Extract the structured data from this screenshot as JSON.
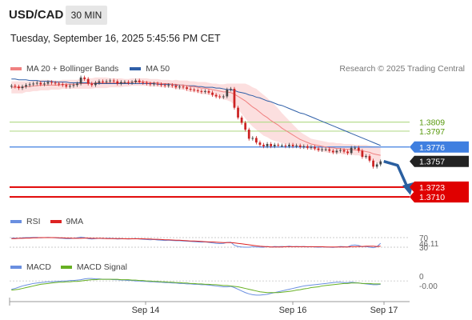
{
  "header": {
    "symbol": "USD/CAD",
    "interval": "30 MIN"
  },
  "timestamp": "Tuesday, September 16, 2025 5:45:56 PM CET",
  "legend": {
    "ma20_label": "MA 20 + Bollinger Bands",
    "ma50_label": "MA 50",
    "research": "Research © 2025 Trading Central"
  },
  "rsi_legend": {
    "rsi": "RSI",
    "ma": "9MA"
  },
  "macd_legend": {
    "macd": "MACD",
    "signal": "MACD Signal"
  },
  "colors": {
    "ma20": "#f08080",
    "ma50": "#2f5fa8",
    "bollinger_fill": "#fbd9d9",
    "resistance": "#b7dc8f",
    "pivot": "#3f7fe0",
    "support": "#e00000",
    "candle_up": "#444444",
    "candle_down": "#cc2222",
    "rsi": "#6a8fe0",
    "rsi_ma": "#dd2222",
    "macd": "#6a8fe0",
    "macd_signal": "#66b022",
    "arrow": "#2a5fa0"
  },
  "chart_data": {
    "type": "candlestick",
    "title": "USD/CAD",
    "interval": "30 MIN",
    "x_tick_labels": [
      "Sep 14",
      "Sep 16",
      "Sep 17"
    ],
    "y_range": [
      1.369,
      1.387
    ],
    "levels": {
      "resistance": [
        1.3809,
        1.3797
      ],
      "pivot": 1.3776,
      "last_price": 1.3757,
      "support": [
        1.3723,
        1.371
      ]
    },
    "level_labels": [
      "1.3809",
      "1.3797",
      "1.3776",
      "1.3757",
      "1.3723",
      "1.3710"
    ],
    "close": [
      1.3857,
      1.3856,
      1.3854,
      1.3856,
      1.3858,
      1.3859,
      1.386,
      1.3861,
      1.3859,
      1.386,
      1.3862,
      1.3861,
      1.386,
      1.3859,
      1.3858,
      1.3856,
      1.3857,
      1.3858,
      1.386,
      1.3868,
      1.3866,
      1.386,
      1.3858,
      1.3861,
      1.3863,
      1.3862,
      1.3863,
      1.3864,
      1.3863,
      1.386,
      1.3862,
      1.3862,
      1.3861,
      1.3862,
      1.3864,
      1.3862,
      1.3861,
      1.386,
      1.3859,
      1.386,
      1.3859,
      1.3858,
      1.3857,
      1.3858,
      1.3857,
      1.3855,
      1.3856,
      1.3855,
      1.3853,
      1.3852,
      1.3851,
      1.385,
      1.3849,
      1.385,
      1.3848,
      1.3845,
      1.3843,
      1.3842,
      1.3843,
      1.3852,
      1.3853,
      1.3828,
      1.3815,
      1.3808,
      1.3799,
      1.3787,
      1.3788,
      1.3782,
      1.3779,
      1.3777,
      1.378,
      1.3777,
      1.3779,
      1.3778,
      1.3778,
      1.3777,
      1.3779,
      1.3777,
      1.3778,
      1.3776,
      1.3777,
      1.3775,
      1.3776,
      1.3774,
      1.3772,
      1.3773,
      1.3773,
      1.3771,
      1.3769,
      1.3771,
      1.3772,
      1.377,
      1.3768,
      1.3775,
      1.3775,
      1.3771,
      1.3763,
      1.3764,
      1.3758,
      1.375,
      1.3753,
      1.3757
    ],
    "open": [
      1.3856,
      1.3857,
      1.3856,
      1.3854,
      1.3856,
      1.3858,
      1.3859,
      1.386,
      1.3861,
      1.3859,
      1.386,
      1.3862,
      1.3861,
      1.386,
      1.3859,
      1.3858,
      1.3856,
      1.3857,
      1.3858,
      1.386,
      1.3868,
      1.3866,
      1.386,
      1.3858,
      1.3861,
      1.3863,
      1.3862,
      1.3863,
      1.3864,
      1.3863,
      1.386,
      1.3862,
      1.3862,
      1.3861,
      1.3862,
      1.3864,
      1.3862,
      1.3861,
      1.386,
      1.3859,
      1.386,
      1.3859,
      1.3858,
      1.3857,
      1.3858,
      1.3857,
      1.3855,
      1.3856,
      1.3855,
      1.3853,
      1.3852,
      1.3851,
      1.385,
      1.3849,
      1.385,
      1.3848,
      1.3845,
      1.3843,
      1.3842,
      1.3843,
      1.3852,
      1.3853,
      1.3828,
      1.3815,
      1.3808,
      1.3799,
      1.3787,
      1.3788,
      1.3782,
      1.3779,
      1.3777,
      1.378,
      1.3777,
      1.3779,
      1.3778,
      1.3778,
      1.3777,
      1.3779,
      1.3777,
      1.3778,
      1.3776,
      1.3777,
      1.3775,
      1.3776,
      1.3774,
      1.3772,
      1.3773,
      1.3773,
      1.3771,
      1.3769,
      1.3771,
      1.3772,
      1.377,
      1.3768,
      1.3775,
      1.3775,
      1.3771,
      1.3763,
      1.3764,
      1.3758,
      1.375,
      1.3753
    ],
    "ma20": [
      1.3855,
      1.3855,
      1.3855,
      1.3855,
      1.3856,
      1.3856,
      1.3857,
      1.3857,
      1.3858,
      1.3858,
      1.3858,
      1.3858,
      1.3858,
      1.3858,
      1.3859,
      1.3859,
      1.3859,
      1.3859,
      1.3859,
      1.386,
      1.386,
      1.386,
      1.386,
      1.3861,
      1.3861,
      1.3861,
      1.3861,
      1.3861,
      1.3861,
      1.3861,
      1.3861,
      1.3861,
      1.3861,
      1.3862,
      1.3862,
      1.3862,
      1.3862,
      1.3862,
      1.3861,
      1.3861,
      1.3861,
      1.386,
      1.386,
      1.386,
      1.3859,
      1.3859,
      1.3858,
      1.3858,
      1.3857,
      1.3856,
      1.3856,
      1.3855,
      1.3854,
      1.3854,
      1.3853,
      1.3852,
      1.3851,
      1.385,
      1.3849,
      1.3849,
      1.3848,
      1.3846,
      1.3843,
      1.384,
      1.3837,
      1.3833,
      1.3829,
      1.3826,
      1.3822,
      1.3818,
      1.3815,
      1.3811,
      1.3808,
      1.3805,
      1.3801,
      1.3798,
      1.3795,
      1.3792,
      1.3789,
      1.3786,
      1.3784,
      1.3782,
      1.378,
      1.3779,
      1.3778,
      1.3777,
      1.3776,
      1.3775,
      1.3775,
      1.3774,
      1.3774,
      1.3773,
      1.3773,
      1.3773,
      1.3772,
      1.3772,
      1.3771,
      1.377,
      1.3769,
      1.3767,
      1.3766,
      1.3765
    ],
    "ma50": [
      1.3866,
      1.3866,
      1.3865,
      1.3865,
      1.3865,
      1.3864,
      1.3864,
      1.3864,
      1.3863,
      1.3863,
      1.3863,
      1.3863,
      1.3862,
      1.3862,
      1.3862,
      1.3862,
      1.3861,
      1.3861,
      1.3861,
      1.3861,
      1.3861,
      1.3861,
      1.386,
      1.386,
      1.386,
      1.386,
      1.386,
      1.386,
      1.386,
      1.386,
      1.386,
      1.386,
      1.386,
      1.386,
      1.386,
      1.386,
      1.386,
      1.386,
      1.386,
      1.386,
      1.3859,
      1.3859,
      1.3859,
      1.3859,
      1.3859,
      1.3858,
      1.3858,
      1.3858,
      1.3857,
      1.3857,
      1.3857,
      1.3856,
      1.3856,
      1.3855,
      1.3855,
      1.3855,
      1.3854,
      1.3854,
      1.3853,
      1.3852,
      1.3852,
      1.3851,
      1.3849,
      1.3848,
      1.3847,
      1.3845,
      1.3844,
      1.3842,
      1.3841,
      1.3839,
      1.3837,
      1.3836,
      1.3834,
      1.3832,
      1.3831,
      1.3829,
      1.3827,
      1.3825,
      1.3823,
      1.3821,
      1.382,
      1.3818,
      1.3816,
      1.3814,
      1.3812,
      1.381,
      1.3808,
      1.3806,
      1.3804,
      1.3802,
      1.38,
      1.3798,
      1.3796,
      1.3794,
      1.3792,
      1.379,
      1.3788,
      1.3786,
      1.3784,
      1.3782,
      1.378,
      1.3778
    ],
    "bb_width": [
      0.0008,
      0.0008,
      0.0008,
      0.0008,
      0.0007,
      0.0007,
      0.0007,
      0.0007,
      0.0007,
      0.0007,
      0.0007,
      0.0006,
      0.0006,
      0.0006,
      0.0006,
      0.0006,
      0.0006,
      0.0006,
      0.0006,
      0.0007,
      0.0007,
      0.0007,
      0.0007,
      0.0007,
      0.0007,
      0.0007,
      0.0007,
      0.0006,
      0.0006,
      0.0006,
      0.0006,
      0.0005,
      0.0005,
      0.0005,
      0.0005,
      0.0005,
      0.0005,
      0.0005,
      0.0005,
      0.0005,
      0.0005,
      0.0005,
      0.0005,
      0.0005,
      0.0005,
      0.0006,
      0.0006,
      0.0006,
      0.0007,
      0.0007,
      0.0007,
      0.0007,
      0.0008,
      0.0008,
      0.0008,
      0.0008,
      0.0009,
      0.0009,
      0.001,
      0.0011,
      0.0012,
      0.0014,
      0.0017,
      0.002,
      0.0023,
      0.0025,
      0.0026,
      0.0027,
      0.0027,
      0.0027,
      0.0026,
      0.0025,
      0.0024,
      0.0022,
      0.002,
      0.0018,
      0.0016,
      0.0014,
      0.0012,
      0.001,
      0.0009,
      0.0008,
      0.0007,
      0.0007,
      0.0007,
      0.0007,
      0.0007,
      0.0007,
      0.0007,
      0.0007,
      0.0007,
      0.0007,
      0.0007,
      0.0007,
      0.0007,
      0.0007,
      0.0008,
      0.0009,
      0.0009,
      0.001,
      0.0011,
      0.0011
    ],
    "rsi": {
      "label_values": [
        "70",
        "46.11",
        "30"
      ],
      "value": 46.11,
      "ylim": [
        0,
        100
      ],
      "series": [
        68,
        68,
        67,
        69,
        70,
        70,
        71,
        71,
        69,
        70,
        71,
        70,
        69,
        68,
        67,
        66,
        66,
        67,
        69,
        72,
        70,
        66,
        64,
        66,
        67,
        66,
        67,
        67,
        66,
        64,
        65,
        65,
        64,
        65,
        66,
        64,
        63,
        62,
        61,
        62,
        60,
        59,
        58,
        59,
        58,
        57,
        57,
        56,
        55,
        54,
        53,
        52,
        51,
        52,
        50,
        48,
        46,
        45,
        46,
        50,
        51,
        38,
        33,
        31,
        30,
        30,
        32,
        31,
        30,
        30,
        33,
        31,
        33,
        32,
        33,
        32,
        34,
        32,
        33,
        32,
        33,
        31,
        32,
        31,
        30,
        31,
        31,
        30,
        29,
        31,
        33,
        32,
        31,
        38,
        39,
        37,
        32,
        33,
        30,
        28,
        32,
        46.11
      ],
      "ma9": [
        66,
        66,
        67,
        67,
        68,
        68,
        69,
        69,
        70,
        70,
        70,
        70,
        70,
        69,
        69,
        68,
        68,
        67,
        67,
        67,
        68,
        68,
        67,
        67,
        67,
        67,
        66,
        66,
        66,
        66,
        66,
        65,
        65,
        65,
        65,
        65,
        65,
        64,
        64,
        63,
        63,
        62,
        61,
        61,
        60,
        59,
        59,
        58,
        57,
        56,
        56,
        55,
        54,
        53,
        52,
        52,
        51,
        50,
        49,
        49,
        49,
        48,
        46,
        44,
        42,
        40,
        38,
        36,
        34,
        33,
        32,
        31,
        31,
        31,
        31,
        32,
        32,
        32,
        32,
        32,
        32,
        32,
        32,
        32,
        32,
        32,
        31,
        31,
        31,
        31,
        31,
        31,
        31,
        32,
        32,
        33,
        33,
        34,
        34,
        34,
        33,
        34
      ]
    },
    "macd": {
      "label_values": [
        "0",
        "-0.00"
      ],
      "series": [
        -0.0002,
        -0.00018,
        -0.00015,
        -0.00012,
        -0.0001,
        -8e-05,
        -6e-05,
        -5e-05,
        -4e-05,
        -3e-05,
        -2e-05,
        -2e-05,
        -1e-05,
        -1e-05,
        0.0,
        0.0,
        1e-05,
        1e-05,
        2e-05,
        3e-05,
        5e-05,
        6e-05,
        6e-05,
        5e-05,
        5e-05,
        4e-05,
        4e-05,
        4e-05,
        3e-05,
        3e-05,
        2e-05,
        2e-05,
        1e-05,
        1e-05,
        0.0,
        0.0,
        -1e-05,
        -1e-05,
        -2e-05,
        -2e-05,
        -3e-05,
        -3e-05,
        -4e-05,
        -4e-05,
        -5e-05,
        -5e-05,
        -6e-05,
        -6e-05,
        -7e-05,
        -7e-05,
        -8e-05,
        -8e-05,
        -9e-05,
        -9e-05,
        -0.0001,
        -0.00011,
        -0.00012,
        -0.00013,
        -0.00014,
        -0.00014,
        -0.00013,
        -0.00016,
        -0.0002,
        -0.00024,
        -0.00028,
        -0.00031,
        -0.00033,
        -0.00034,
        -0.00034,
        -0.00033,
        -0.00032,
        -0.0003,
        -0.00028,
        -0.00026,
        -0.00024,
        -0.00022,
        -0.0002,
        -0.00018,
        -0.00016,
        -0.00014,
        -0.00012,
        -0.00011,
        -0.0001,
        -9e-05,
        -8e-05,
        -7e-05,
        -6e-05,
        -5e-05,
        -4e-05,
        -3e-05,
        -3e-05,
        -4e-05,
        -4e-05,
        -3e-05,
        -4e-05,
        -5e-05,
        -6e-05,
        -7e-05,
        -8e-05,
        -9e-05,
        -9e-05,
        -8e-05
      ],
      "signal": [
        -0.00022,
        -0.00021,
        -0.0002,
        -0.00018,
        -0.00016,
        -0.00014,
        -0.00012,
        -0.0001,
        -8e-05,
        -7e-05,
        -6e-05,
        -5e-05,
        -4e-05,
        -3e-05,
        -3e-05,
        -2e-05,
        -2e-05,
        -1e-05,
        -1e-05,
        0.0,
        1e-05,
        2e-05,
        3e-05,
        3e-05,
        4e-05,
        4e-05,
        4e-05,
        4e-05,
        4e-05,
        4e-05,
        3e-05,
        3e-05,
        3e-05,
        2e-05,
        2e-05,
        1e-05,
        1e-05,
        0.0,
        0.0,
        -1e-05,
        -1e-05,
        -2e-05,
        -2e-05,
        -3e-05,
        -3e-05,
        -4e-05,
        -4e-05,
        -5e-05,
        -5e-05,
        -6e-05,
        -6e-05,
        -7e-05,
        -7e-05,
        -8e-05,
        -8e-05,
        -9e-05,
        -9e-05,
        -0.0001,
        -0.00011,
        -0.00011,
        -0.00012,
        -0.00013,
        -0.00014,
        -0.00016,
        -0.00018,
        -0.0002,
        -0.00022,
        -0.00024,
        -0.00026,
        -0.00027,
        -0.00028,
        -0.00028,
        -0.00028,
        -0.00028,
        -0.00027,
        -0.00026,
        -0.00025,
        -0.00024,
        -0.00022,
        -0.00021,
        -0.00019,
        -0.00018,
        -0.00016,
        -0.00015,
        -0.00014,
        -0.00012,
        -0.00011,
        -0.0001,
        -9e-05,
        -8e-05,
        -7e-05,
        -6e-05,
        -6e-05,
        -5e-05,
        -5e-05,
        -5e-05,
        -6e-05,
        -6e-05,
        -6e-05,
        -7e-05,
        -7e-05,
        -7e-05
      ]
    }
  }
}
